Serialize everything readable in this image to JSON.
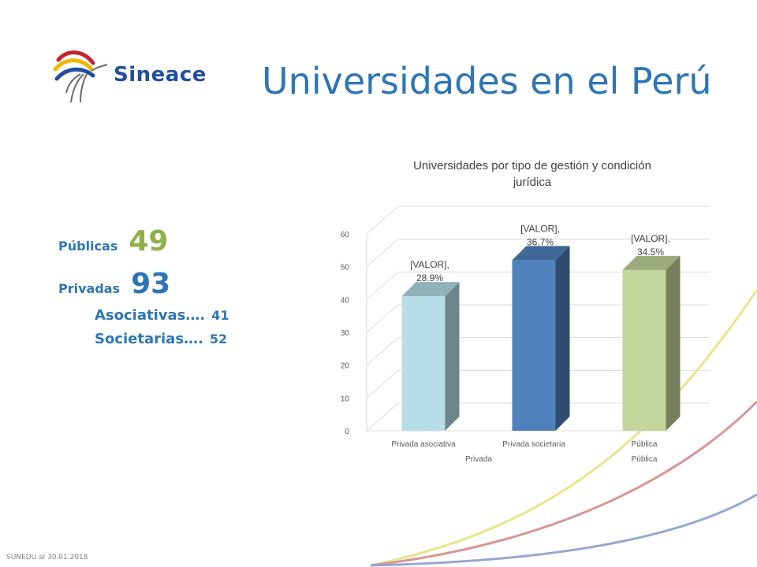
{
  "brand": {
    "name": "Sineace"
  },
  "slide": {
    "title": "Universidades en el Perú"
  },
  "stats": {
    "publicas": {
      "label": "Públicas",
      "value": "49"
    },
    "privadas": {
      "label": "Privadas",
      "value": "93"
    },
    "asociativas": {
      "label": "Asociativas….",
      "value": "41"
    },
    "societarias": {
      "label": "Societarias….",
      "value": "52"
    }
  },
  "footer": {
    "source": "SUNEDU al 30.01.2018"
  },
  "colors": {
    "title_blue": "#2e75b6",
    "accent_green": "#8fb04a",
    "bar_light_blue": "#b7dee8",
    "bar_blue": "#4f81bd",
    "bar_green": "#c3d69b",
    "curve_yellow": "#e6e68a",
    "curve_red": "#d99594",
    "curve_blue": "#95a9cf"
  },
  "chart_data": {
    "type": "bar",
    "title": "Universidades por tipo de gestión y condición jurídica",
    "categories": [
      "Privada asociativa",
      "Privada societaria",
      "Pública"
    ],
    "groups": [
      {
        "label": "Privada",
        "categories": [
          "Privada asociativa",
          "Privada societaria"
        ]
      },
      {
        "label": "Pública",
        "categories": [
          "Pública"
        ]
      }
    ],
    "values": [
      41,
      52,
      49
    ],
    "data_labels": [
      [
        "[VALOR],",
        "28.9%"
      ],
      [
        "[VALOR],",
        "36.7%"
      ],
      [
        "[VALOR],",
        "34.5%"
      ]
    ],
    "colors": [
      "#b7dee8",
      "#4f81bd",
      "#c3d69b"
    ],
    "ylim": [
      0,
      60
    ],
    "yticks": [
      "0",
      "10",
      "20",
      "30",
      "40",
      "50",
      "60"
    ],
    "grid": true,
    "xlabel": "",
    "ylabel": ""
  }
}
